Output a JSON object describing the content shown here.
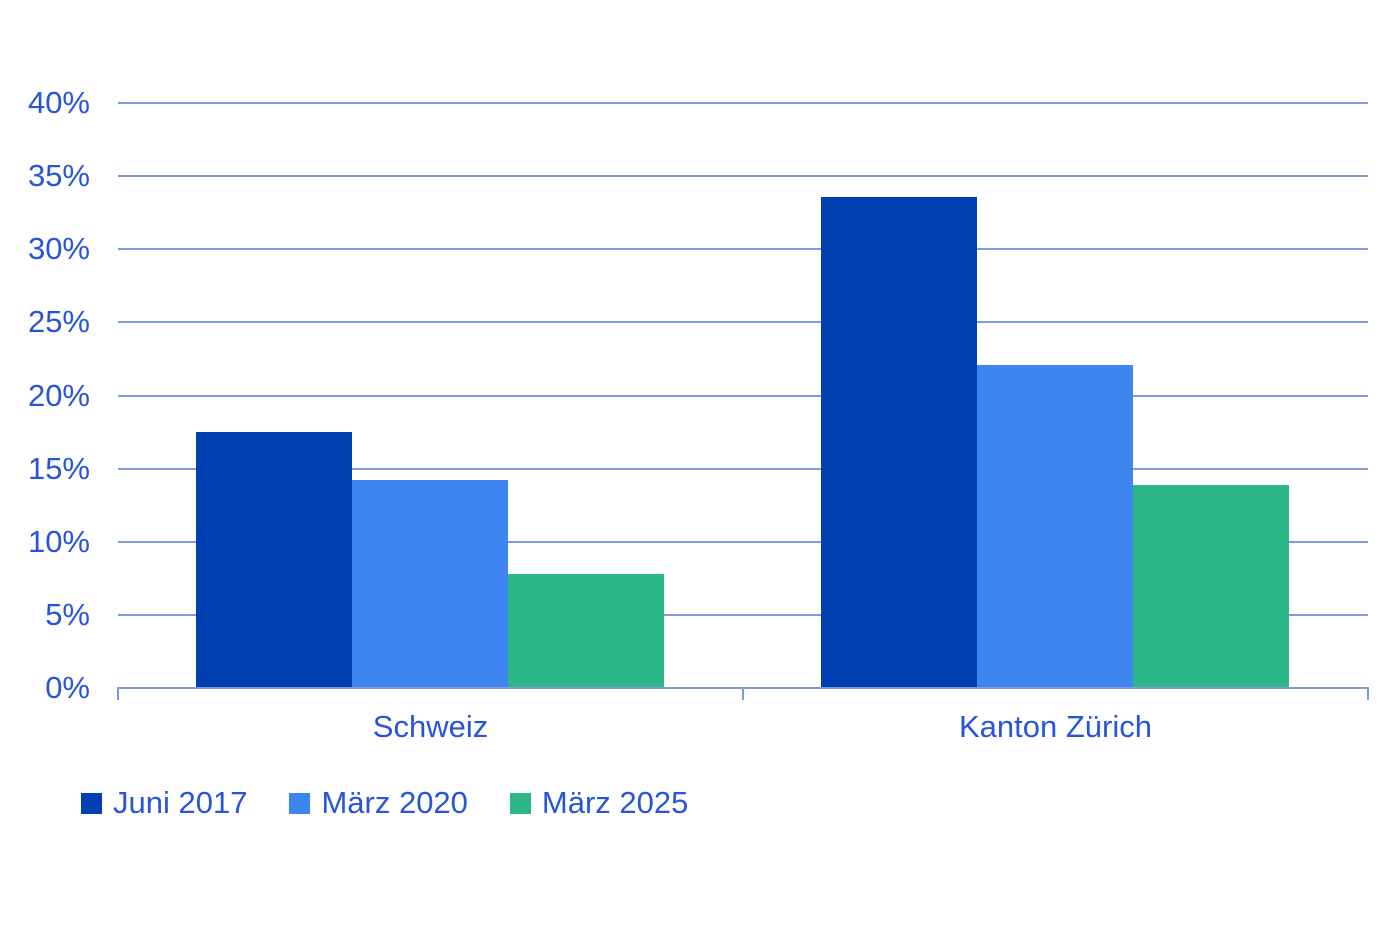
{
  "chart_data": {
    "type": "bar",
    "title": "",
    "unit": "%",
    "categories": [
      "Schweiz",
      "Kanton Zürich"
    ],
    "series": [
      {
        "name": "Juni 2017",
        "color": "#0040b2",
        "values": [
          17.5,
          33.6
        ]
      },
      {
        "name": "März 2020",
        "color": "#3e85f0",
        "values": [
          14.2,
          22.1
        ]
      },
      {
        "name": "März 2025",
        "color": "#2bb787",
        "values": [
          7.8,
          13.9
        ]
      }
    ],
    "ylim": [
      0,
      40
    ],
    "y_tick_step": 5,
    "y_tick_labels": [
      "0%",
      "5%",
      "10%",
      "15%",
      "20%",
      "25%",
      "30%",
      "35%",
      "40%"
    ],
    "grid": "horizontal",
    "legend_position": "bottom-left",
    "colors": {
      "text": "#2754d9",
      "gridline": "#8099dd",
      "axis": "#8099dd",
      "background": "#ffffff"
    }
  }
}
